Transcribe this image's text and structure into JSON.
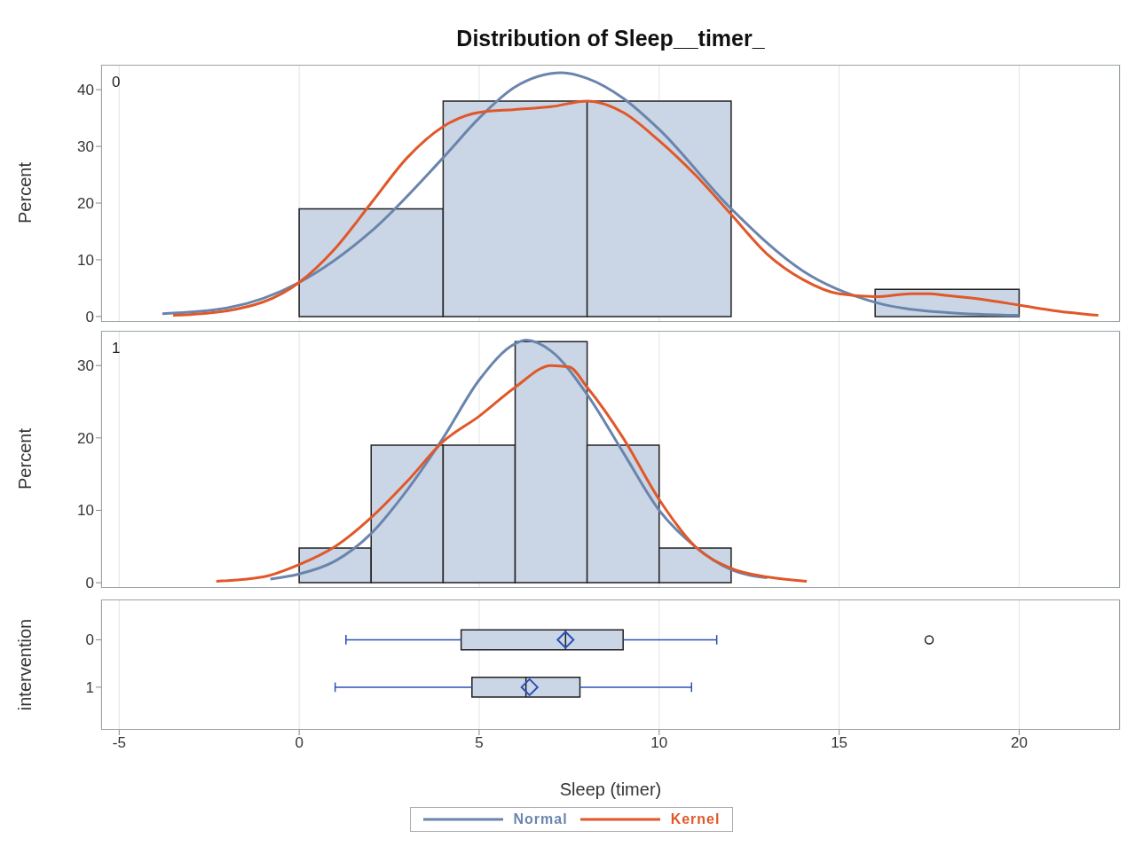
{
  "chart_data": [
    {
      "type": "histogram",
      "title": "Distribution of Sleep__timer_",
      "ylabel": "Percent",
      "annotations": [
        "0"
      ],
      "bins": [
        0,
        4,
        8,
        12,
        16,
        20
      ],
      "values": [
        19,
        38,
        38,
        0,
        4.8
      ],
      "color": "#cad5e5",
      "xlim": [
        -5.5,
        22.8
      ],
      "xticks": [
        -5,
        0,
        5,
        10,
        15,
        20
      ],
      "ylim": [
        -0.8,
        44.4
      ],
      "yticks": [
        0,
        10,
        20,
        30,
        40
      ],
      "grid": "x",
      "tick_labels": "y",
      "legend": "bottom",
      "series": [
        {
          "type": "line",
          "name": "Normal",
          "color": "#6a85ad",
          "x": [
            -3.8,
            -2,
            0,
            2,
            4,
            5,
            6,
            7.3,
            8,
            9,
            10,
            12,
            14,
            16,
            18,
            20
          ],
          "values": [
            0.5,
            1.5,
            6,
            15,
            28,
            35,
            40.5,
            43,
            42,
            38.5,
            33,
            19,
            8,
            2.5,
            0.7,
            0.2
          ]
        },
        {
          "type": "line",
          "name": "Kernel",
          "color": "#e0582a",
          "x": [
            -3.5,
            -2,
            0,
            1,
            2,
            3,
            4,
            5,
            6,
            7,
            8,
            9,
            10,
            11,
            12,
            13,
            14,
            15,
            16,
            17,
            17.5,
            18,
            19,
            20,
            21,
            22.2
          ],
          "values": [
            0.2,
            1,
            6,
            12,
            20,
            28,
            33.5,
            36,
            36.5,
            37,
            38,
            36,
            31,
            25,
            18,
            11,
            6.5,
            4,
            3.5,
            4,
            4,
            3.7,
            3,
            2,
            1,
            0.2
          ]
        }
      ]
    },
    {
      "type": "histogram",
      "ylabel": "Percent",
      "annotations": [
        "1"
      ],
      "bins": [
        0,
        2,
        4,
        6,
        8,
        10,
        12
      ],
      "values": [
        4.8,
        19,
        19,
        33.3,
        19,
        4.8
      ],
      "color": "#cad5e5",
      "xlim": [
        -5.5,
        22.8
      ],
      "xticks": [
        -5,
        0,
        5,
        10,
        15,
        20
      ],
      "ylim": [
        -0.6,
        34.8
      ],
      "yticks": [
        0,
        10,
        20,
        30
      ],
      "grid": "x",
      "tick_labels": "y",
      "series": [
        {
          "type": "line",
          "color": "#6a85ad",
          "x": [
            -0.8,
            0,
            1,
            2,
            3,
            4,
            5,
            6,
            6.3,
            7,
            8,
            9,
            10,
            11,
            12,
            13
          ],
          "values": [
            0.5,
            1.2,
            3,
            6.8,
            12.8,
            20,
            28,
            33,
            33.5,
            32,
            26,
            18,
            10,
            5,
            1.8,
            0.7
          ]
        },
        {
          "type": "line",
          "color": "#e0582a",
          "x": [
            -2.3,
            -1,
            0,
            1,
            2,
            3,
            4,
            5,
            6,
            7,
            7.5,
            8,
            9,
            10,
            11,
            12,
            13,
            14.1
          ],
          "values": [
            0.2,
            0.8,
            2.5,
            5,
            9,
            14,
            19.5,
            23,
            27,
            30,
            29.8,
            27,
            20,
            11.5,
            5,
            2,
            0.8,
            0.2
          ]
        }
      ]
    },
    {
      "type": "box",
      "orientation": "horizontal",
      "xlabel": "Sleep (timer)",
      "ylabel": "intervention",
      "categories": [
        "0",
        "1"
      ],
      "color": "#cad5e5",
      "xlim": [
        -5.5,
        22.8
      ],
      "xticks": [
        -5,
        0,
        5,
        10,
        15,
        20
      ],
      "grid": "x",
      "boxes": [
        {
          "low": 1.3,
          "q1": 4.5,
          "median": 7.4,
          "q3": 9.0,
          "high": 11.6,
          "mean": 7.4,
          "outliers": [
            17.5
          ]
        },
        {
          "low": 1.0,
          "q1": 4.8,
          "median": 6.3,
          "q3": 7.8,
          "high": 10.9,
          "mean": 6.4
        }
      ]
    }
  ]
}
